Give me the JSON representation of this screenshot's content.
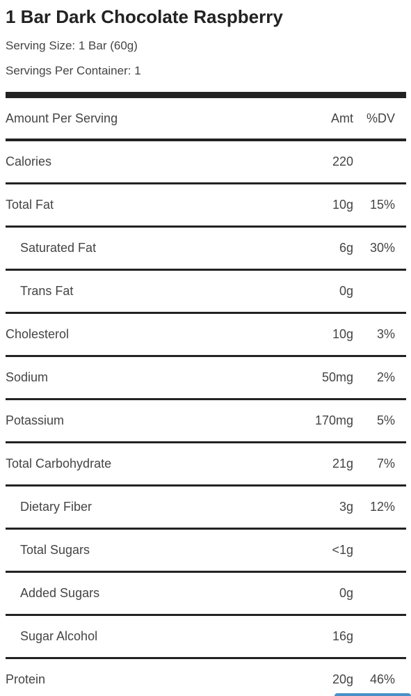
{
  "product": {
    "title": "1 Bar Dark Chocolate Raspberry",
    "serving_size": "Serving Size: 1 Bar (60g)",
    "servings_per_container": "Servings Per Container: 1"
  },
  "table": {
    "header": {
      "label": "Amount Per Serving",
      "amt": "Amt",
      "dv": "%DV"
    },
    "rows": [
      {
        "label": "Calories",
        "amt": "220",
        "dv": "",
        "sub": false
      },
      {
        "label": "Total Fat",
        "amt": "10g",
        "dv": "15%",
        "sub": false
      },
      {
        "label": "Saturated Fat",
        "amt": "6g",
        "dv": "30%",
        "sub": true
      },
      {
        "label": "Trans Fat",
        "amt": "0g",
        "dv": "",
        "sub": true
      },
      {
        "label": "Cholesterol",
        "amt": "10g",
        "dv": "3%",
        "sub": false
      },
      {
        "label": "Sodium",
        "amt": "50mg",
        "dv": "2%",
        "sub": false
      },
      {
        "label": "Potassium",
        "amt": "170mg",
        "dv": "5%",
        "sub": false
      },
      {
        "label": "Total Carbohydrate",
        "amt": "21g",
        "dv": "7%",
        "sub": false
      },
      {
        "label": "Dietary Fiber",
        "amt": "3g",
        "dv": "12%",
        "sub": true
      },
      {
        "label": "Total Sugars",
        "amt": "<1g",
        "dv": "",
        "sub": true
      },
      {
        "label": "Added Sugars",
        "amt": "0g",
        "dv": "",
        "sub": true
      },
      {
        "label": "Sugar Alcohol",
        "amt": "16g",
        "dv": "",
        "sub": true
      },
      {
        "label": "Protein",
        "amt": "20g",
        "dv": "46%",
        "sub": false
      }
    ]
  },
  "colors": {
    "text": "#444444",
    "rule": "#222222",
    "accent": "#4a90c8"
  }
}
